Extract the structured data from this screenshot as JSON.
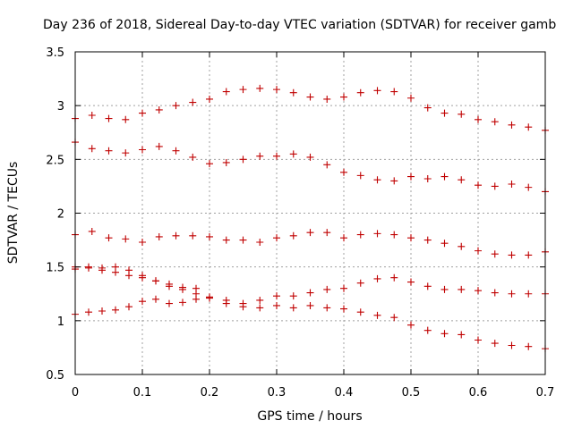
{
  "chart_data": {
    "type": "scatter",
    "title": "Day 236 of 2018, Sidereal Day-to-day VTEC variation (SDTVAR) for receiver gamb",
    "xlabel": "GPS time / hours",
    "ylabel": "SDTVAR / TECUs",
    "xlim": [
      0,
      0.7
    ],
    "ylim": [
      0.5,
      3.5
    ],
    "xticks": [
      0,
      0.1,
      0.2,
      0.3,
      0.4,
      0.5,
      0.6,
      0.7
    ],
    "xtick_labels": [
      "0",
      "0.1",
      "0.2",
      "0.3",
      "0.4",
      "0.5",
      "0.6",
      "0.7"
    ],
    "yticks": [
      0.5,
      1,
      1.5,
      2,
      2.5,
      3,
      3.5
    ],
    "ytick_labels": [
      "0.5",
      "1",
      "1.5",
      "2",
      "2.5",
      "3",
      "3.5"
    ],
    "grid": true,
    "marker": "+",
    "color": "#c00000",
    "series": [
      {
        "name": "series-1",
        "x": [
          0.0,
          0.025,
          0.05,
          0.075,
          0.1,
          0.125,
          0.15,
          0.175,
          0.2,
          0.225,
          0.25,
          0.275,
          0.3,
          0.325,
          0.35,
          0.375,
          0.4,
          0.425,
          0.45,
          0.475,
          0.5,
          0.525,
          0.55,
          0.575,
          0.6,
          0.625,
          0.65,
          0.675,
          0.7
        ],
        "values": [
          2.88,
          2.91,
          2.88,
          2.87,
          2.93,
          2.96,
          3.0,
          3.03,
          3.06,
          3.13,
          3.15,
          3.16,
          3.15,
          3.12,
          3.08,
          3.06,
          3.08,
          3.12,
          3.14,
          3.13,
          3.07,
          2.98,
          2.93,
          2.92,
          2.87,
          2.85,
          2.82,
          2.8,
          2.77
        ]
      },
      {
        "name": "series-2",
        "x": [
          0.0,
          0.025,
          0.05,
          0.075,
          0.1,
          0.125,
          0.15,
          0.175,
          0.2,
          0.225,
          0.25,
          0.275,
          0.3,
          0.325,
          0.35,
          0.375,
          0.4,
          0.425,
          0.45,
          0.475,
          0.5,
          0.525,
          0.55,
          0.575,
          0.6,
          0.625,
          0.65,
          0.675,
          0.7
        ],
        "values": [
          2.66,
          2.6,
          2.58,
          2.56,
          2.59,
          2.62,
          2.58,
          2.52,
          2.46,
          2.47,
          2.5,
          2.53,
          2.53,
          2.55,
          2.52,
          2.45,
          2.38,
          2.35,
          2.31,
          2.3,
          2.34,
          2.32,
          2.34,
          2.31,
          2.26,
          2.25,
          2.27,
          2.24,
          2.2
        ]
      },
      {
        "name": "series-3",
        "x": [
          0.0,
          0.025,
          0.05,
          0.075,
          0.1,
          0.125,
          0.15,
          0.175,
          0.2,
          0.225,
          0.25,
          0.275,
          0.3,
          0.325,
          0.35,
          0.375,
          0.4,
          0.425,
          0.45,
          0.475,
          0.5,
          0.525,
          0.55,
          0.575,
          0.6,
          0.625,
          0.65,
          0.675,
          0.7
        ],
        "values": [
          1.8,
          1.83,
          1.77,
          1.76,
          1.73,
          1.78,
          1.79,
          1.79,
          1.78,
          1.75,
          1.75,
          1.73,
          1.77,
          1.79,
          1.82,
          1.82,
          1.77,
          1.8,
          1.81,
          1.8,
          1.77,
          1.75,
          1.72,
          1.69,
          1.65,
          1.62,
          1.61,
          1.61,
          1.64
        ]
      },
      {
        "name": "series-4",
        "x": [
          0.0,
          0.02,
          0.04,
          0.06,
          0.08,
          0.1,
          0.12,
          0.14,
          0.16,
          0.18
        ],
        "values": [
          1.5,
          1.49,
          1.49,
          1.5,
          1.47,
          1.42,
          1.37,
          1.34,
          1.31,
          1.3
        ]
      },
      {
        "name": "series-5",
        "x": [
          0.0,
          0.02,
          0.04,
          0.06,
          0.08,
          0.1,
          0.12,
          0.14,
          0.16,
          0.18,
          0.2,
          0.225,
          0.25,
          0.275,
          0.3,
          0.325,
          0.35,
          0.375,
          0.4,
          0.425,
          0.45,
          0.475,
          0.5,
          0.525,
          0.55,
          0.575,
          0.6,
          0.625,
          0.65,
          0.675,
          0.7
        ],
        "values": [
          1.48,
          1.5,
          1.47,
          1.45,
          1.42,
          1.4,
          1.37,
          1.32,
          1.29,
          1.25,
          1.22,
          1.19,
          1.16,
          1.19,
          1.23,
          1.23,
          1.26,
          1.29,
          1.3,
          1.35,
          1.39,
          1.4,
          1.36,
          1.32,
          1.29,
          1.29,
          1.28,
          1.26,
          1.25,
          1.25,
          1.25
        ]
      },
      {
        "name": "series-6",
        "x": [
          0.0,
          0.02,
          0.04,
          0.06,
          0.08,
          0.1,
          0.12,
          0.14,
          0.16,
          0.18,
          0.2,
          0.225,
          0.25,
          0.275,
          0.3,
          0.325,
          0.35,
          0.375,
          0.4,
          0.425,
          0.45,
          0.475,
          0.5,
          0.525,
          0.55,
          0.575,
          0.6,
          0.625,
          0.65,
          0.675,
          0.7
        ],
        "values": [
          1.06,
          1.08,
          1.09,
          1.1,
          1.13,
          1.18,
          1.2,
          1.16,
          1.17,
          1.2,
          1.21,
          1.16,
          1.13,
          1.12,
          1.14,
          1.12,
          1.14,
          1.12,
          1.11,
          1.08,
          1.05,
          1.03,
          0.96,
          0.91,
          0.88,
          0.87,
          0.82,
          0.79,
          0.77,
          0.76,
          0.74
        ]
      }
    ]
  }
}
